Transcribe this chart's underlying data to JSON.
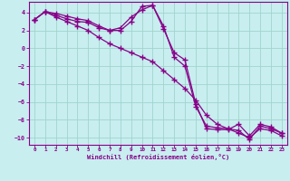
{
  "xlabel": "Windchill (Refroidissement éolien,°C)",
  "background_color": "#c8eef0",
  "grid_color": "#a0d4cc",
  "line_color": "#880088",
  "xlim": [
    -0.5,
    23.5
  ],
  "ylim": [
    -10.8,
    5.2
  ],
  "yticks": [
    -10,
    -8,
    -6,
    -4,
    -2,
    0,
    2,
    4
  ],
  "xticks": [
    0,
    1,
    2,
    3,
    4,
    5,
    6,
    7,
    8,
    9,
    10,
    11,
    12,
    13,
    14,
    15,
    16,
    17,
    18,
    19,
    20,
    21,
    22,
    23
  ],
  "series1_x": [
    0,
    1,
    2,
    3,
    4,
    5,
    6,
    7,
    8,
    9,
    10,
    11,
    12,
    13,
    14,
    15,
    16,
    17,
    18,
    19,
    20,
    21,
    22,
    23
  ],
  "series1_y": [
    3.2,
    4.1,
    3.7,
    3.3,
    3.0,
    2.9,
    2.3,
    2.0,
    2.3,
    3.5,
    4.3,
    4.8,
    2.2,
    -0.5,
    -1.3,
    -6.2,
    -9.0,
    -9.1,
    -9.1,
    -8.5,
    -9.8,
    -8.5,
    -8.8,
    -9.5
  ],
  "series2_x": [
    0,
    1,
    2,
    3,
    4,
    5,
    6,
    7,
    8,
    9,
    10,
    11,
    12,
    13,
    14,
    15,
    16,
    17,
    18,
    19,
    20,
    21,
    22,
    23
  ],
  "series2_y": [
    3.2,
    4.1,
    3.9,
    3.6,
    3.3,
    3.1,
    2.5,
    2.0,
    2.0,
    3.0,
    4.7,
    4.8,
    2.5,
    -1.0,
    -2.0,
    -6.5,
    -8.7,
    -8.9,
    -9.0,
    -9.2,
    -10.2,
    -8.7,
    -9.0,
    -9.5
  ],
  "series3_x": [
    0,
    1,
    2,
    3,
    4,
    5,
    6,
    7,
    8,
    9,
    10,
    11,
    12,
    13,
    14,
    15,
    16,
    17,
    18,
    19,
    20,
    21,
    22,
    23
  ],
  "series3_y": [
    3.2,
    4.1,
    3.5,
    3.0,
    2.5,
    2.0,
    1.2,
    0.5,
    0.0,
    -0.5,
    -1.0,
    -1.5,
    -2.5,
    -3.5,
    -4.5,
    -5.8,
    -7.5,
    -8.5,
    -9.0,
    -9.5,
    -10.0,
    -9.0,
    -9.2,
    -9.8
  ]
}
